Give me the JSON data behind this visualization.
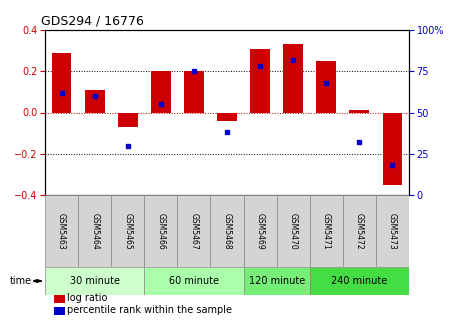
{
  "title": "GDS294 / 16776",
  "samples": [
    "GSM5463",
    "GSM5464",
    "GSM5465",
    "GSM5466",
    "GSM5467",
    "GSM5468",
    "GSM5469",
    "GSM5470",
    "GSM5471",
    "GSM5472",
    "GSM5473"
  ],
  "log_ratio": [
    0.29,
    0.11,
    -0.07,
    0.2,
    0.2,
    -0.04,
    0.31,
    0.33,
    0.25,
    0.01,
    -0.35
  ],
  "percentile": [
    62,
    60,
    30,
    55,
    75,
    38,
    78,
    82,
    68,
    32,
    18
  ],
  "groups": [
    {
      "label": "30 minute",
      "start": 0,
      "end": 3,
      "color": "#ccffcc"
    },
    {
      "label": "60 minute",
      "start": 3,
      "end": 6,
      "color": "#aaffaa"
    },
    {
      "label": "120 minute",
      "start": 6,
      "end": 8,
      "color": "#77ee77"
    },
    {
      "label": "240 minute",
      "start": 8,
      "end": 11,
      "color": "#44dd44"
    }
  ],
  "ylim": [
    -0.4,
    0.4
  ],
  "y2lim": [
    0,
    100
  ],
  "yticks": [
    -0.4,
    -0.2,
    0.0,
    0.2,
    0.4
  ],
  "y2ticks": [
    0,
    25,
    50,
    75,
    100
  ],
  "bar_color": "#cc0000",
  "dot_color": "#0000cc",
  "ylabel_left_color": "#cc0000",
  "ylabel_right_color": "#0000cc",
  "legend_bar_color": "#cc0000",
  "legend_dot_color": "#0000cc"
}
